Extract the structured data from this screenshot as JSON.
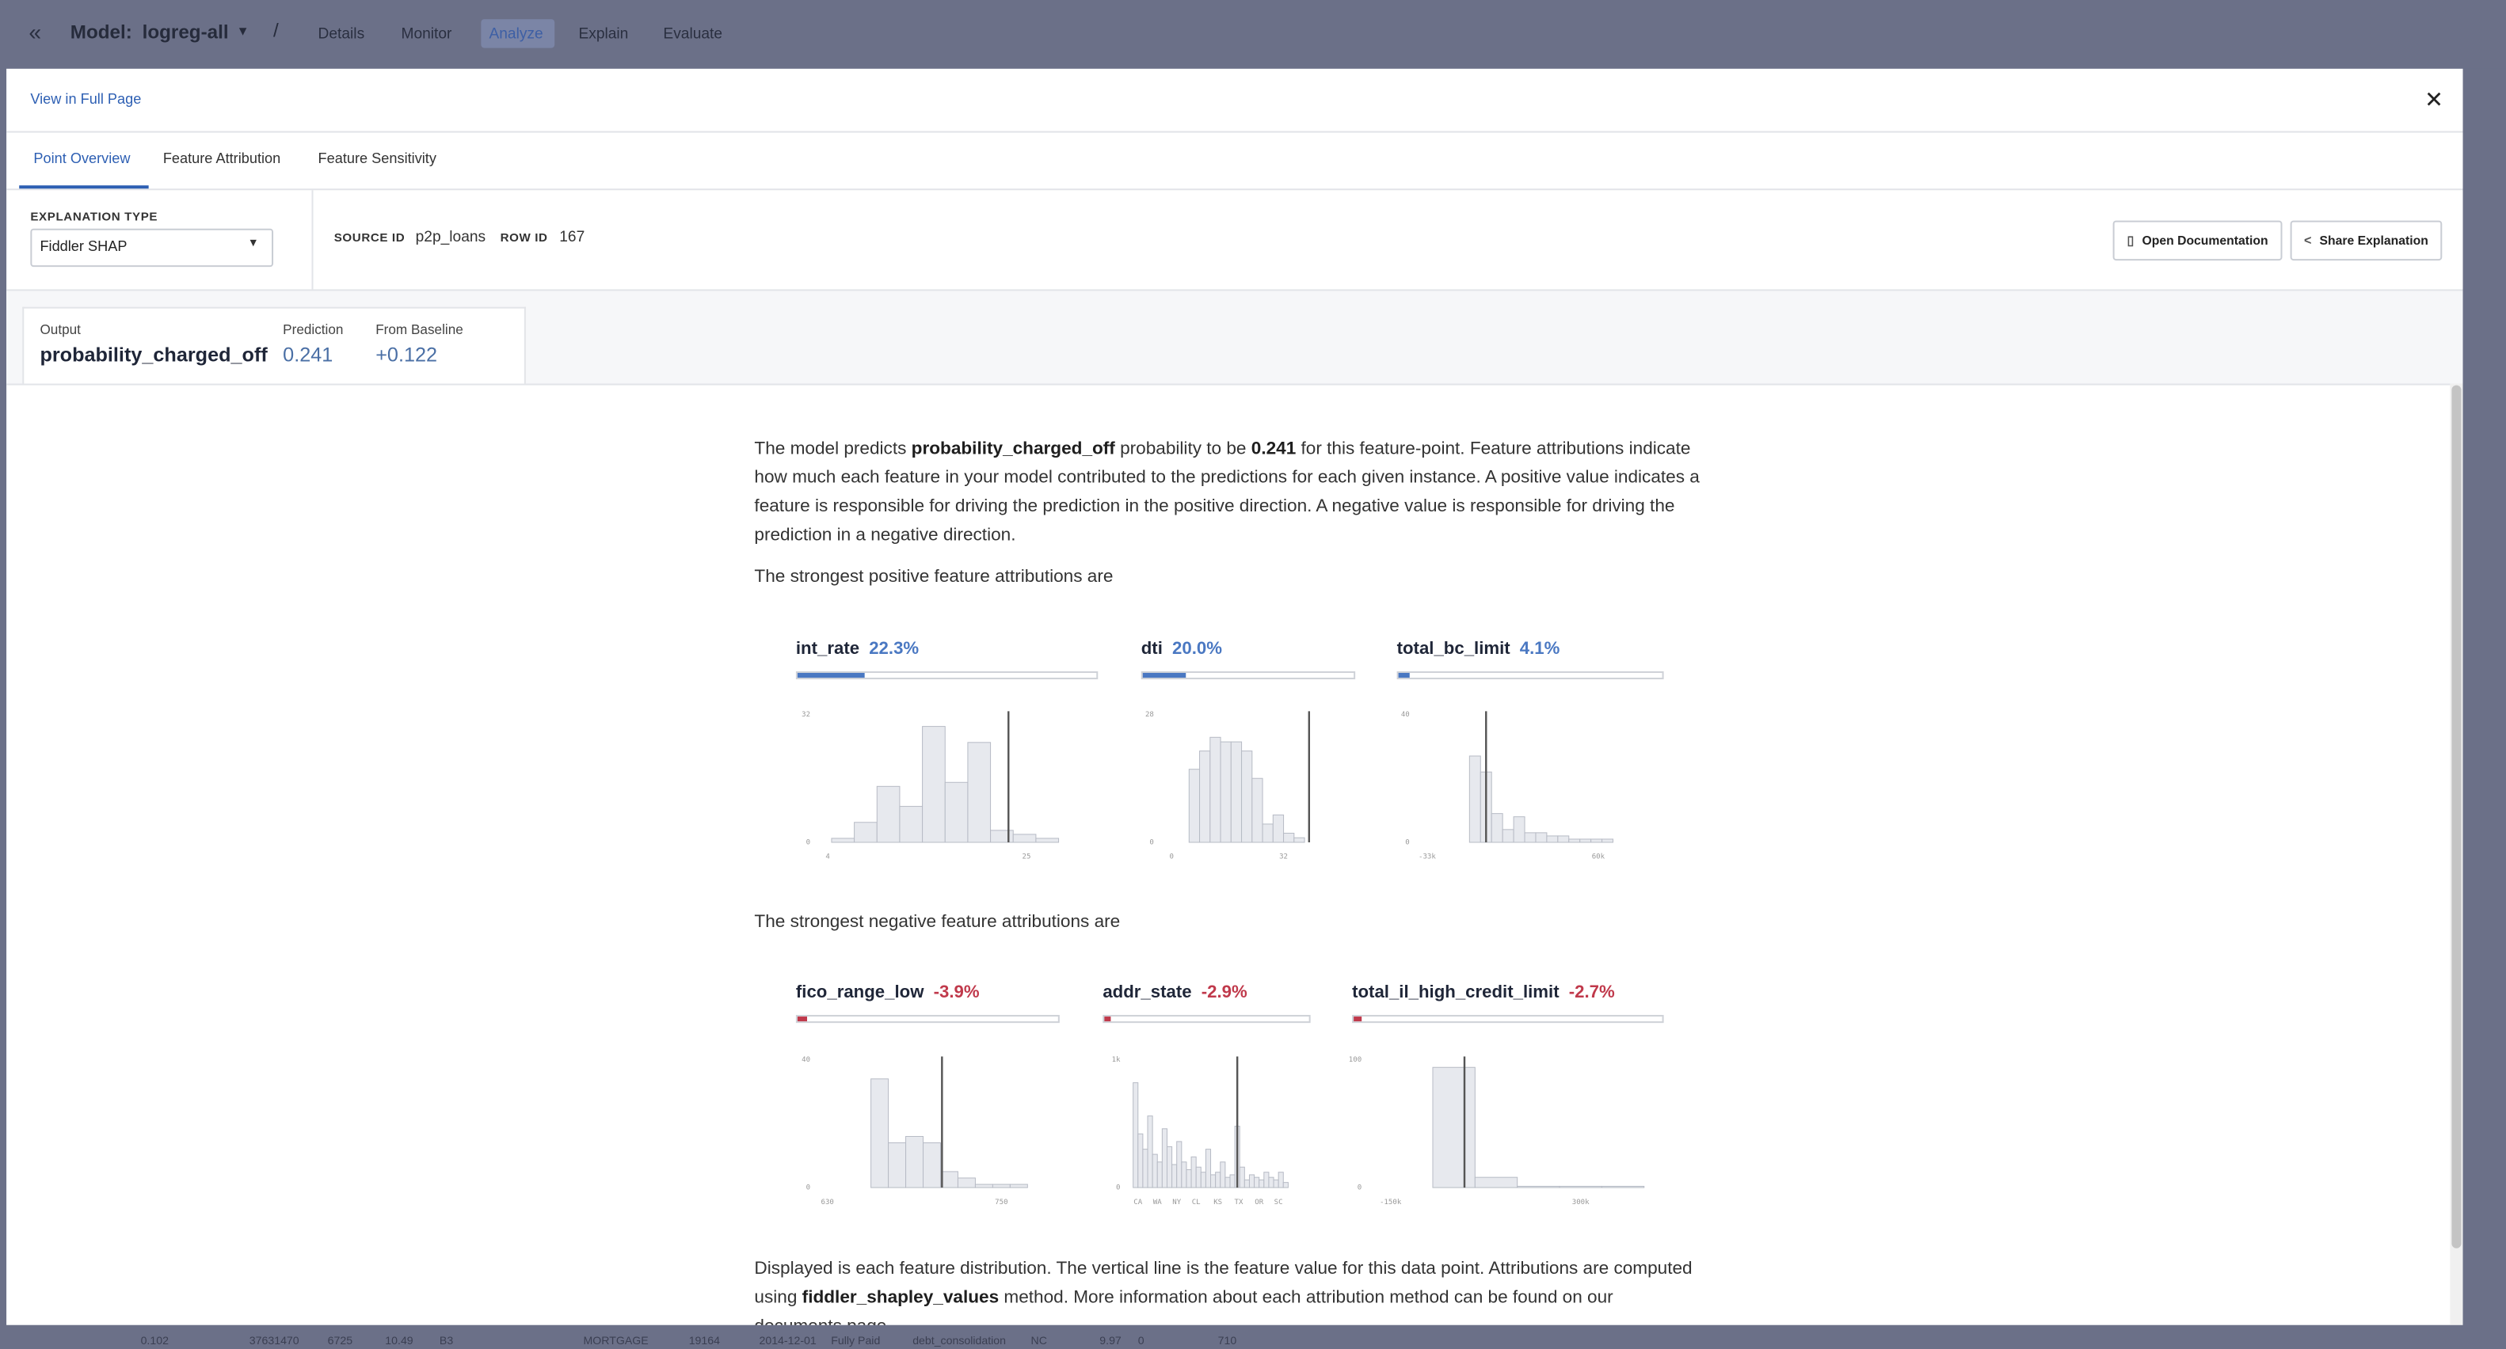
{
  "app_nav": {
    "model_label": "Model:",
    "model_name": "logreg-all",
    "tabs": [
      "Details",
      "Monitor",
      "Analyze",
      "Explain",
      "Evaluate"
    ],
    "active_tab": 2
  },
  "background_row": [
    "0.102",
    "37631470",
    "6725",
    "10.49",
    "B3",
    "MORTGAGE",
    "19164",
    "2014-12-01",
    "Fully Paid",
    "debt_consolidation",
    "NC",
    "9.97",
    "0",
    "710"
  ],
  "modal": {
    "link": "View in Full Page",
    "tabs": [
      "Point Overview",
      "Feature Attribution",
      "Feature Sensitivity"
    ],
    "active_tab": 0,
    "explanation_type_label": "EXPLANATION TYPE",
    "explanation_type": "Fiddler SHAP",
    "source_id_label": "SOURCE ID",
    "source_id": "p2p_loans",
    "row_id_label": "ROW ID",
    "row_id": "167",
    "buttons": [
      "Open Documentation",
      "Share Explanation"
    ],
    "output": {
      "label": "Output",
      "value": "probability_charged_off"
    },
    "prediction": {
      "label": "Prediction",
      "value": "0.241"
    },
    "baseline": {
      "label": "From Baseline",
      "value": "+0.122"
    }
  },
  "content": {
    "intro": [
      "The model predicts ",
      "probability_charged_off",
      " probability to be ",
      "0.241",
      " for this feature-point. Feature attributions indicate how much each feature in your model contributed to the predictions for each given instance. A positive value indicates a feature is responsible for driving the prediction in the positive direction. A negative value is responsible for driving the prediction in a negative direction."
    ],
    "positive_heading": "The strongest positive feature attributions are",
    "positive": [
      {
        "name": "int_rate",
        "attribution": 22.3,
        "attribution_label": "22.3%",
        "color": "#4a78c2",
        "histogram": {
          "ylim": [
            0,
            32
          ],
          "yticks": [
            0,
            32
          ],
          "xlim": [
            3.5,
            28
          ],
          "xticks": [
            4,
            25
          ],
          "bins": [
            4.4,
            6.8,
            9.2,
            11.6,
            14,
            16.4,
            18.8,
            21.2,
            23.6,
            26,
            28.4
          ],
          "counts": [
            1,
            5,
            14,
            9,
            29,
            15,
            25,
            3,
            2,
            1
          ],
          "marker": 23.1
        }
      },
      {
        "name": "dti",
        "attribution": 20.0,
        "attribution_label": "20.0%",
        "color": "#4a78c2",
        "histogram": {
          "ylim": [
            0,
            28
          ],
          "yticks": [
            0,
            28
          ],
          "xlim": [
            -1.4,
            42
          ],
          "xticks": [
            0,
            32
          ],
          "bins": [
            5,
            8,
            11,
            14,
            17,
            20,
            23,
            26,
            29,
            32,
            35,
            38,
            41
          ],
          "counts": [
            16,
            20,
            23,
            22,
            22,
            20,
            14,
            4,
            6,
            2,
            1,
            0
          ],
          "marker": 39.3
        }
      },
      {
        "name": "total_bc_limit",
        "attribution": 4.1,
        "attribution_label": "4.1%",
        "color": "#4a78c2",
        "histogram": {
          "ylim": [
            0,
            40
          ],
          "yticks": [
            0,
            40
          ],
          "xlim": [
            -35600,
            73000
          ],
          "xticks": [
            {
              "value": -33000,
              "label": "-33k"
            },
            {
              "value": 60000,
              "label": "60k"
            }
          ],
          "bins": [
            -10000,
            -4000,
            2000,
            8000,
            14000,
            20000,
            26000,
            32000,
            38000,
            44000,
            50000,
            56000,
            62000,
            68000
          ],
          "counts": [
            27,
            22,
            9,
            4,
            8,
            3,
            3,
            2,
            2,
            1,
            1,
            1,
            1
          ],
          "marker": -1000
        }
      }
    ],
    "negative_heading": "The strongest negative feature attributions are",
    "negative": [
      {
        "name": "fico_range_low",
        "attribution": -3.9,
        "attribution_label": "-3.9%",
        "color": "#c0394b",
        "histogram": {
          "ylim": [
            0,
            40
          ],
          "yticks": [
            0,
            40
          ],
          "xlim": [
            627,
            778
          ],
          "xticks": [
            630,
            750
          ],
          "bins": [
            660,
            672,
            684,
            696,
            708,
            720,
            732,
            744,
            756,
            768
          ],
          "counts": [
            34,
            14,
            16,
            14,
            5,
            3,
            1,
            1,
            1
          ],
          "marker": 709
        }
      },
      {
        "name": "addr_state",
        "attribution": -2.9,
        "attribution_label": "-2.9%",
        "color": "#c0394b",
        "histogram": {
          "ylim": [
            0,
            1000
          ],
          "yticks": [
            0,
            {
              "value": 1000,
              "label": "1k"
            }
          ],
          "xlim": [
            0,
            32
          ],
          "xticks": [
            {
              "value": 1,
              "label": "CA"
            },
            {
              "value": 5,
              "label": "WA"
            },
            {
              "value": 9,
              "label": "NY"
            },
            {
              "value": 13,
              "label": "CL"
            },
            {
              "value": 17.5,
              "label": "KS"
            },
            {
              "value": 21.8,
              "label": "TX"
            },
            {
              "value": 26,
              "label": "OR"
            },
            {
              "value": 30,
              "label": "SC"
            }
          ],
          "bins": [
            0,
            1,
            2,
            3,
            4,
            5,
            6,
            7,
            8,
            9,
            10,
            11,
            12,
            13,
            14,
            15,
            16,
            17,
            18,
            19,
            20,
            21,
            22,
            23,
            24,
            25,
            26,
            27,
            28,
            29,
            30,
            31,
            32
          ],
          "counts": [
            820,
            420,
            300,
            560,
            260,
            200,
            460,
            320,
            180,
            360,
            200,
            140,
            240,
            160,
            120,
            300,
            100,
            120,
            200,
            80,
            100,
            480,
            160,
            60,
            100,
            80,
            60,
            120,
            80,
            60,
            120,
            40
          ],
          "marker": 21.5
        }
      },
      {
        "name": "total_il_high_credit_limit",
        "attribution": -2.7,
        "attribution_label": "-2.7%",
        "color": "#c0394b",
        "histogram": {
          "ylim": [
            0,
            100
          ],
          "yticks": [
            0,
            100
          ],
          "xlim": [
            -188000,
            455000
          ],
          "xticks": [
            {
              "value": -150000,
              "label": "-150k"
            },
            {
              "value": 300000,
              "label": "300k"
            }
          ],
          "bins": [
            -50000,
            50000,
            150000,
            250000,
            350000,
            450000
          ],
          "counts": [
            94,
            8,
            1,
            1,
            1
          ],
          "marker": 25000
        }
      }
    ],
    "footer": [
      "Displayed is each feature distribution. The vertical line is the feature value for this data point. Attributions are computed using ",
      "fiddler_shapley_values",
      " method. More information about each attribution method can be found on our documents page."
    ]
  }
}
